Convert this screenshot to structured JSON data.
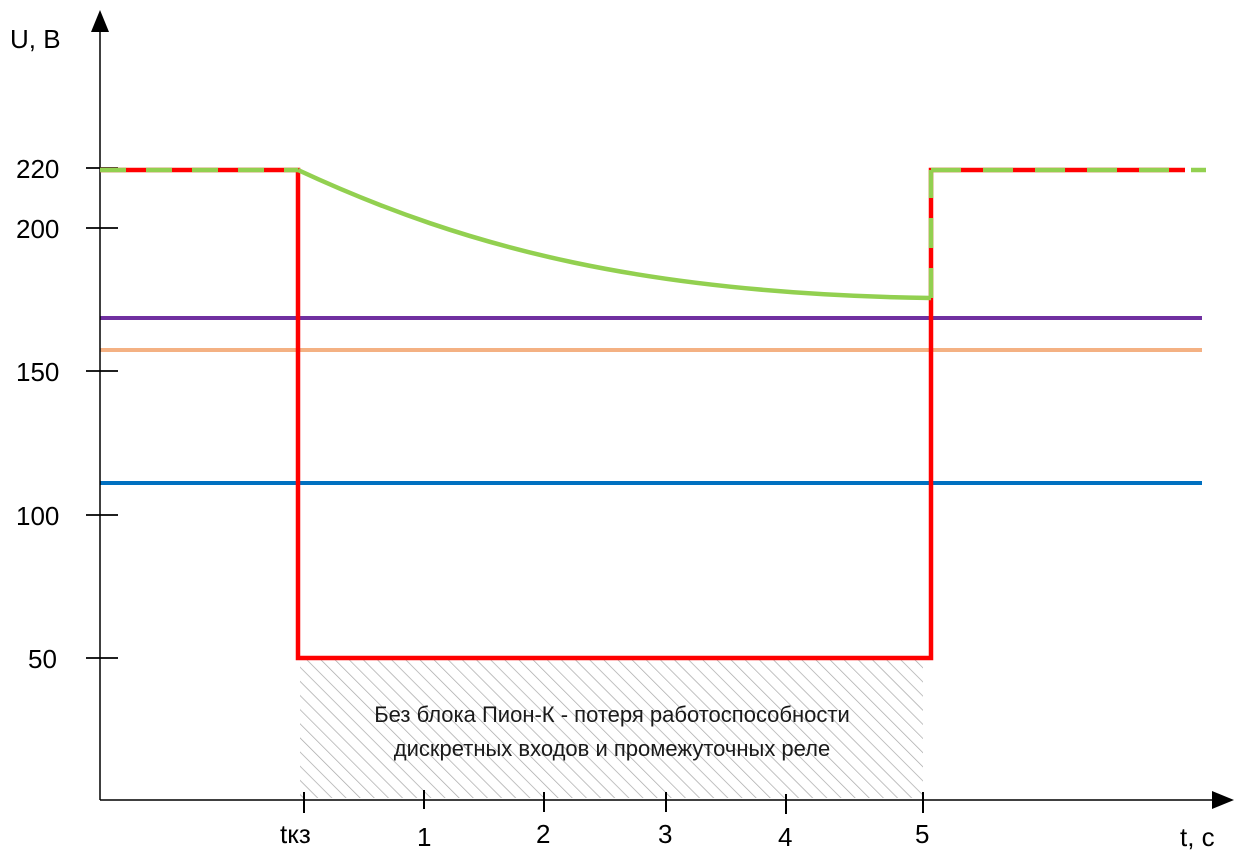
{
  "chart_data": {
    "type": "line",
    "ylabel": "U, В",
    "xlabel": "t, с",
    "x_ticks": [
      "tкз",
      "1",
      "2",
      "3",
      "4",
      "5"
    ],
    "y_ticks": [
      "220",
      "200",
      "150",
      "100",
      "50"
    ],
    "annotation": {
      "line1": "Без блока Пион-К - потеря работоспособности",
      "line2": "дискретных входов и промежуточных реле"
    },
    "series": [
      {
        "color": "#ff0000",
        "style": "solid",
        "x": [
          "start",
          "tкз",
          "tкз",
          "5",
          "5",
          "end"
        ],
        "y": [
          220,
          220,
          50,
          50,
          220,
          220
        ]
      },
      {
        "color": "#92d050",
        "style": "dashed/solid",
        "x": [
          "start",
          "tкз",
          "1",
          "2",
          "3",
          "4",
          "5",
          "5",
          "end"
        ],
        "y": [
          220,
          220,
          207,
          196,
          187,
          180,
          176,
          220,
          220
        ]
      },
      {
        "color": "#7030a0",
        "style": "solid",
        "y": 169
      },
      {
        "color": "#f4b183",
        "style": "solid",
        "y": 158
      },
      {
        "color": "#0070c0",
        "style": "solid",
        "y": 112
      }
    ],
    "shaded_region": {
      "x": [
        "tкз",
        "5"
      ],
      "y": [
        0,
        50
      ],
      "pattern": "hatch"
    }
  }
}
